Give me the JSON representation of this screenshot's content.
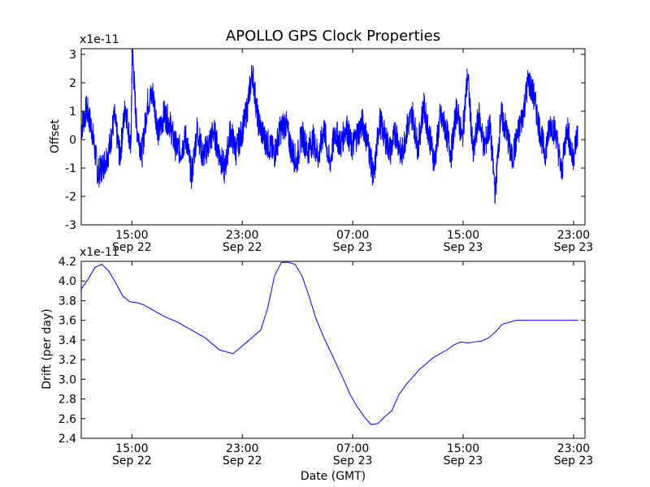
{
  "figure": {
    "title": "APOLLO GPS Clock Properties"
  },
  "chart_data": [
    {
      "type": "line",
      "title": "APOLLO GPS Clock Properties",
      "ylabel": "Offset",
      "xlabel": "",
      "y_multiplier": "x1e-11",
      "xlim": [
        "Sep 22 11:20",
        "Sep 23 23:50"
      ],
      "ylim": [
        -3,
        3.2
      ],
      "yticks": [
        "-3",
        "-2",
        "-1",
        "0",
        "1",
        "2",
        "3"
      ],
      "xticks": [
        {
          "time": "15:00",
          "date": "Sep 22"
        },
        {
          "time": "23:00",
          "date": "Sep 22"
        },
        {
          "time": "07:00",
          "date": "Sep 23"
        },
        {
          "time": "15:00",
          "date": "Sep 23"
        },
        {
          "time": "23:00",
          "date": "Sep 23"
        }
      ],
      "color": "#0000ff",
      "grid": false,
      "series": [
        {
          "x_hours_since_start": [
            0,
            0.4,
            0.8,
            1.2,
            1.6,
            2.0,
            2.4,
            2.8,
            3.2,
            3.6,
            3.7,
            4.0,
            4.4,
            4.8,
            5.2,
            5.6,
            6.0,
            6.4,
            6.8,
            7.2,
            7.6,
            8.0,
            8.4,
            8.8,
            9.2,
            9.6,
            10.0,
            10.4,
            10.8,
            11.2,
            11.6,
            12.0,
            12.4,
            12.8,
            13.2,
            13.6,
            14.0,
            14.4,
            14.8,
            15.2,
            15.6,
            16.0,
            16.4,
            16.8,
            17.2,
            17.6,
            18.0,
            18.4,
            18.8,
            19.2,
            19.6,
            20.0,
            20.4,
            20.8,
            21.2,
            21.6,
            22.0,
            22.4,
            22.8,
            23.2,
            23.6,
            24.0,
            24.4,
            24.8,
            25.2,
            25.6,
            26.0,
            26.4,
            26.8,
            27.2,
            27.6,
            28.0,
            28.4,
            28.8,
            29.2,
            29.6,
            30.0,
            30.4,
            30.8,
            31.2,
            31.6,
            32.0,
            32.4,
            32.8,
            33.2,
            33.6,
            34.0,
            34.4,
            34.8,
            35.2,
            35.6,
            36.0
          ],
          "values": [
            0.4,
            1.1,
            0.3,
            -1.2,
            -0.9,
            -0.4,
            0.8,
            -0.6,
            1.2,
            -0.3,
            3.2,
            0.5,
            -0.5,
            1.3,
            1.6,
            0.2,
            0.9,
            0.6,
            -0.2,
            -0.4,
            0.1,
            -1.3,
            0.4,
            -0.6,
            -0.2,
            0.3,
            -0.5,
            -1.1,
            0.3,
            -0.4,
            0.2,
            1.0,
            2.4,
            0.7,
            0.1,
            -0.2,
            -0.5,
            0.3,
            0.6,
            -0.3,
            -0.8,
            0.2,
            -0.4,
            0.0,
            -0.6,
            0.4,
            -0.9,
            0.3,
            -0.2,
            0.5,
            -0.3,
            0.2,
            0.6,
            -0.2,
            -1.4,
            0.7,
            0.1,
            -0.4,
            0.3,
            -0.6,
            0.4,
            0.9,
            -0.3,
            1.2,
            0.2,
            -0.8,
            0.8,
            0.4,
            -0.5,
            1.1,
            0.0,
            2.3,
            -0.6,
            0.9,
            -0.3,
            0.5,
            -1.9,
            0.9,
            0.3,
            -0.7,
            0.1,
            0.9,
            2.1,
            1.5,
            0.4,
            -0.5,
            0.6,
            0.2,
            -1.2,
            0.5,
            -0.7,
            0.3
          ]
        }
      ]
    },
    {
      "type": "line",
      "title": "",
      "ylabel": "Drift (per day)",
      "xlabel": "Date (GMT)",
      "y_multiplier": "x1e-11",
      "xlim": [
        "Sep 22 11:20",
        "Sep 23 23:50"
      ],
      "ylim": [
        2.4,
        4.2
      ],
      "yticks": [
        "2.4",
        "2.6",
        "2.8",
        "3.0",
        "3.2",
        "3.4",
        "3.6",
        "3.8",
        "4.0",
        "4.2"
      ],
      "xticks": [
        {
          "time": "15:00",
          "date": "Sep 22"
        },
        {
          "time": "23:00",
          "date": "Sep 22"
        },
        {
          "time": "07:00",
          "date": "Sep 23"
        },
        {
          "time": "15:00",
          "date": "Sep 23"
        },
        {
          "time": "23:00",
          "date": "Sep 23"
        }
      ],
      "color": "#0000ff",
      "grid": false,
      "series": [
        {
          "x_hours_since_start": [
            0,
            0.5,
            1.0,
            1.5,
            2.0,
            2.5,
            3.0,
            3.5,
            4.0,
            4.5,
            5.0,
            5.5,
            6.0,
            7.0,
            8.0,
            9.0,
            10.0,
            11.0,
            11.5,
            12.0,
            12.5,
            13.0,
            13.5,
            14.0,
            14.5,
            15.0,
            15.5,
            16.0,
            16.5,
            17.0,
            17.5,
            18.0,
            18.5,
            19.0,
            19.5,
            20.0,
            20.5,
            21.0,
            21.5,
            22.0,
            22.5,
            23.0,
            23.5,
            24.0,
            24.5,
            25.0,
            25.5,
            26.0,
            26.5,
            27.0,
            27.5,
            28.0,
            28.5,
            29.0,
            29.5,
            30.0,
            30.5,
            31.0,
            31.5,
            32.0,
            32.5,
            33.0,
            33.5,
            34.0,
            34.5,
            35.0,
            35.5,
            36.0
          ],
          "values": [
            3.92,
            4.02,
            4.14,
            4.17,
            4.1,
            3.98,
            3.85,
            3.79,
            3.78,
            3.76,
            3.72,
            3.68,
            3.64,
            3.58,
            3.5,
            3.42,
            3.3,
            3.26,
            3.32,
            3.38,
            3.44,
            3.5,
            3.72,
            4.05,
            4.19,
            4.19,
            4.17,
            4.05,
            3.85,
            3.62,
            3.45,
            3.3,
            3.15,
            3.0,
            2.84,
            2.72,
            2.62,
            2.54,
            2.55,
            2.62,
            2.68,
            2.84,
            2.94,
            3.02,
            3.1,
            3.16,
            3.22,
            3.26,
            3.3,
            3.35,
            3.38,
            3.37,
            3.38,
            3.39,
            3.42,
            3.48,
            3.56,
            3.58,
            3.6,
            3.6,
            3.6,
            3.6,
            3.6,
            3.6,
            3.6,
            3.6,
            3.6,
            3.6
          ]
        }
      ]
    }
  ]
}
